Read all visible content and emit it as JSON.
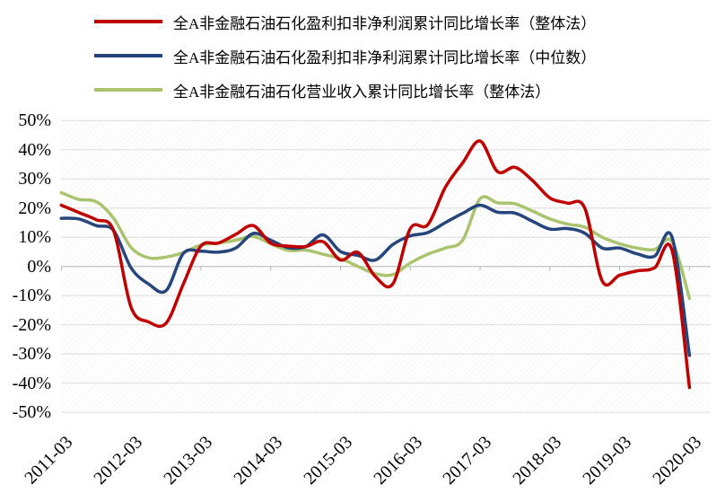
{
  "legend": {
    "items": [
      {
        "label": "全A非金融石油石化盈利扣非净利润累计同比增长率（整体法）",
        "color": "#C00000"
      },
      {
        "label": "全A非金融石油石化盈利扣非净利润累计同比增长率（中位数）",
        "color": "#25457C"
      },
      {
        "label": "全A非金融石油石化营业收入累计同比增长率（整体法）",
        "color": "#A9C46D"
      }
    ]
  },
  "y_axis": {
    "tick_labels": [
      "50%",
      "40%",
      "30%",
      "20%",
      "10%",
      "0%",
      "-10%",
      "-20%",
      "-30%",
      "-40%",
      "-50%"
    ],
    "tick_values": [
      50,
      40,
      30,
      20,
      10,
      0,
      -10,
      -20,
      -30,
      -40,
      -50
    ]
  },
  "x_axis": {
    "tick_labels": [
      "2011-03",
      "2012-03",
      "2013-03",
      "2014-03",
      "2015-03",
      "2016-03",
      "2017-03",
      "2018-03",
      "2019-03",
      "2020-03"
    ]
  },
  "chart_data": {
    "type": "line",
    "title": "",
    "xlabel": "",
    "ylabel": "",
    "ylim": [
      -50,
      50
    ],
    "y_tick_step": 10,
    "grid": true,
    "plot_background": "diagonal-hatch",
    "legend_position": "top-left",
    "x_tick_labels": [
      "2011-03",
      "2012-03",
      "2013-03",
      "2014-03",
      "2015-03",
      "2016-03",
      "2017-03",
      "2018-03",
      "2019-03",
      "2020-03"
    ],
    "categories": [
      "2011-03",
      "2011-06",
      "2011-09",
      "2011-12",
      "2012-03",
      "2012-06",
      "2012-09",
      "2012-12",
      "2013-03",
      "2013-06",
      "2013-09",
      "2013-12",
      "2014-03",
      "2014-06",
      "2014-09",
      "2014-12",
      "2015-03",
      "2015-06",
      "2015-09",
      "2015-12",
      "2016-03",
      "2016-06",
      "2016-09",
      "2016-12",
      "2017-03",
      "2017-06",
      "2017-09",
      "2017-12",
      "2018-03",
      "2018-06",
      "2018-09",
      "2018-12",
      "2019-03",
      "2019-06",
      "2019-09",
      "2019-12",
      "2020-03"
    ],
    "series": [
      {
        "name": "全A非金融石油石化盈利扣非净利润累计同比增长率（整体法）",
        "color": "#C00000",
        "values": [
          21,
          18.5,
          16,
          12.3,
          -14,
          -19,
          -19.5,
          -6,
          7,
          8,
          11,
          14,
          8,
          7,
          6.8,
          8.5,
          2.2,
          4.8,
          -3.5,
          -6,
          13,
          14.3,
          27,
          35.5,
          43,
          32.5,
          34,
          29.5,
          23.5,
          21.7,
          20,
          -5,
          -3,
          -1.5,
          -0.5,
          5.5,
          -41.5
        ]
      },
      {
        "name": "全A非金融石油石化盈利扣非净利润累计同比增长率（中位数）",
        "color": "#25457C",
        "values": [
          16.5,
          16.3,
          14,
          12.3,
          -0.5,
          -6,
          -8.3,
          4.5,
          5.2,
          4.9,
          6.3,
          11.3,
          9,
          6.4,
          6.8,
          10.8,
          5.1,
          3.8,
          2.2,
          7.5,
          10.5,
          11.6,
          15,
          18.2,
          21,
          18.6,
          18.3,
          15.5,
          12.8,
          13,
          11.4,
          6.3,
          6.3,
          4.3,
          3.5,
          10,
          -30.5
        ]
      },
      {
        "name": "全A非金融石油石化营业收入累计同比增长率（整体法）",
        "color": "#A9C46D",
        "values": [
          25.3,
          23,
          22.2,
          16.5,
          6.5,
          3,
          3.2,
          4.8,
          7.3,
          8,
          9,
          10.3,
          7.8,
          5.5,
          5.6,
          4.2,
          2.7,
          0,
          -2.5,
          -2.8,
          1.2,
          4.2,
          6.3,
          9,
          23.2,
          21.8,
          21.5,
          19,
          16.3,
          14.5,
          13.5,
          10,
          7.8,
          6.3,
          5.8,
          8.5,
          -11
        ]
      }
    ]
  }
}
